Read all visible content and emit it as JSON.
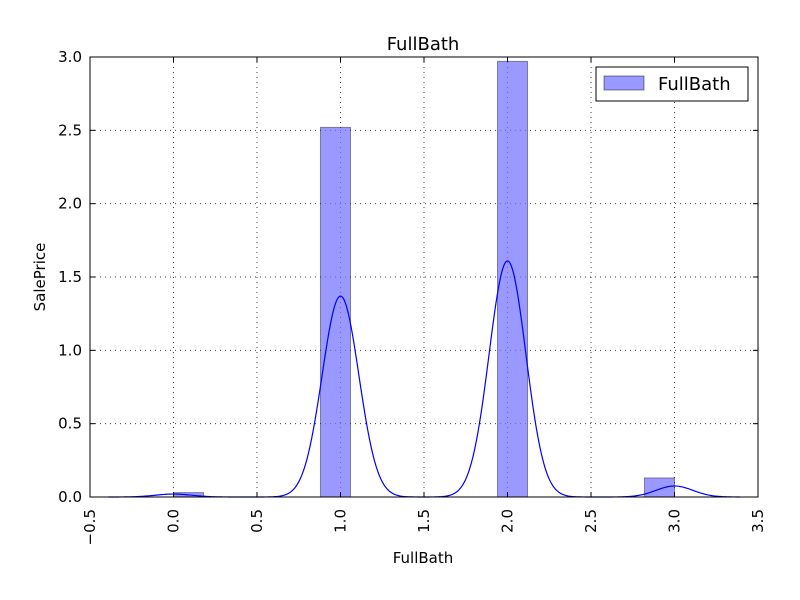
{
  "chart_data": {
    "type": "bar",
    "title": "FullBath",
    "xlabel": "FullBath",
    "ylabel": "SalePrice",
    "xlim": [
      -0.5,
      3.5
    ],
    "ylim": [
      0.0,
      3.0
    ],
    "xticks": [
      -0.5,
      0.0,
      0.5,
      1.0,
      1.5,
      2.0,
      2.5,
      3.0,
      3.5
    ],
    "yticks": [
      0.0,
      0.5,
      1.0,
      1.5,
      2.0,
      2.5,
      3.0
    ],
    "xtick_labels": [
      "−0.5",
      "0.0",
      "0.5",
      "1.0",
      "1.5",
      "2.0",
      "2.5",
      "3.0",
      "3.5"
    ],
    "ytick_labels": [
      "0.0",
      "0.5",
      "1.0",
      "1.5",
      "2.0",
      "2.5",
      "3.0"
    ],
    "grid": true,
    "legend": {
      "position": "top-right",
      "entries": [
        "FullBath"
      ]
    },
    "series": [
      {
        "name": "FullBath",
        "kind": "histogram",
        "color": "#7777ff",
        "bars": [
          {
            "x_start": 0.0,
            "x_end": 0.18,
            "value": 0.03
          },
          {
            "x_start": 0.88,
            "x_end": 1.06,
            "value": 2.52
          },
          {
            "x_start": 1.94,
            "x_end": 2.12,
            "value": 2.97
          },
          {
            "x_start": 2.82,
            "x_end": 3.0,
            "value": 0.13
          }
        ]
      },
      {
        "kind": "kde",
        "color": "#0000ff",
        "components": [
          {
            "center": 0.0,
            "peak": 0.02,
            "sigma": 0.11
          },
          {
            "center": 1.0,
            "peak": 1.37,
            "sigma": 0.11
          },
          {
            "center": 2.0,
            "peak": 1.61,
            "sigma": 0.11
          },
          {
            "center": 3.0,
            "peak": 0.075,
            "sigma": 0.11
          }
        ],
        "x_range": [
          -0.39,
          3.39
        ]
      }
    ]
  }
}
